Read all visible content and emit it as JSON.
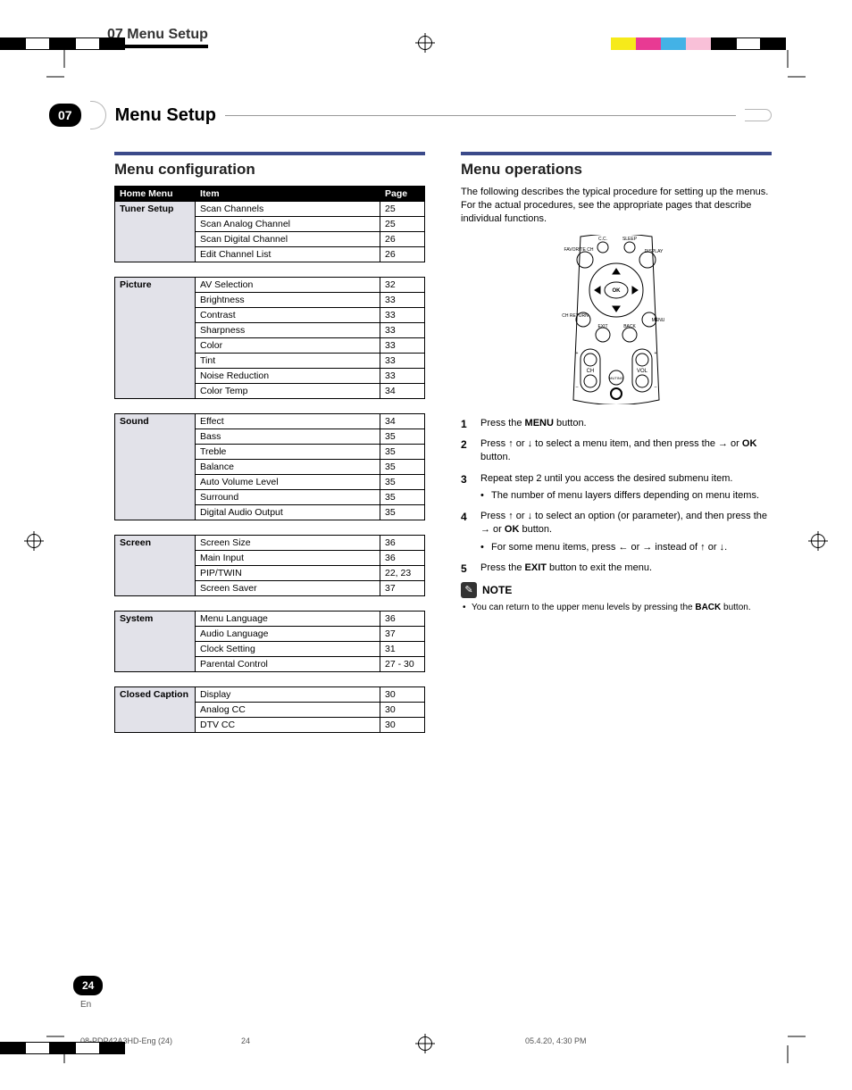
{
  "top_label": "07 Menu Setup",
  "chapter": {
    "num": "07",
    "title": "Menu Setup"
  },
  "left": {
    "heading": "Menu configuration",
    "header_row": [
      "Home Menu",
      "Item",
      "Page"
    ],
    "groups": [
      {
        "category": "Tuner Setup",
        "rows": [
          [
            "Scan Channels",
            "25"
          ],
          [
            "Scan Analog Channel",
            "25"
          ],
          [
            "Scan Digital Channel",
            "26"
          ],
          [
            "Edit Channel List",
            "26"
          ]
        ]
      },
      {
        "category": "Picture",
        "rows": [
          [
            "AV Selection",
            "32"
          ],
          [
            "Brightness",
            "33"
          ],
          [
            "Contrast",
            "33"
          ],
          [
            "Sharpness",
            "33"
          ],
          [
            "Color",
            "33"
          ],
          [
            "Tint",
            "33"
          ],
          [
            "Noise Reduction",
            "33"
          ],
          [
            "Color Temp",
            "34"
          ]
        ]
      },
      {
        "category": "Sound",
        "rows": [
          [
            "Effect",
            "34"
          ],
          [
            "Bass",
            "35"
          ],
          [
            "Treble",
            "35"
          ],
          [
            "Balance",
            "35"
          ],
          [
            "Auto Volume Level",
            "35"
          ],
          [
            "Surround",
            "35"
          ],
          [
            "Digital Audio Output",
            "35"
          ]
        ]
      },
      {
        "category": "Screen",
        "rows": [
          [
            "Screen Size",
            "36"
          ],
          [
            "Main Input",
            "36"
          ],
          [
            "PIP/TWIN",
            "22, 23"
          ],
          [
            "Screen Saver",
            "37"
          ]
        ]
      },
      {
        "category": "System",
        "rows": [
          [
            "Menu Language",
            "36"
          ],
          [
            "Audio Language",
            "37"
          ],
          [
            "Clock Setting",
            "31"
          ],
          [
            "Parental Control",
            "27 - 30"
          ]
        ]
      },
      {
        "category": "Closed Caption",
        "rows": [
          [
            "Display",
            "30"
          ],
          [
            "Analog CC",
            "30"
          ],
          [
            "DTV CC",
            "30"
          ]
        ]
      }
    ]
  },
  "right": {
    "heading": "Menu operations",
    "intro": "The following describes the typical procedure for setting up the menus. For the actual procedures, see the appropriate pages that describe individual functions.",
    "remote_labels": {
      "cc": "C.C.",
      "sleep": "SLEEP",
      "fav": "FAVORITE CH",
      "display": "DISPLAY",
      "ok": "OK",
      "ch_return": "CH RETURN",
      "menu": "MENU",
      "exit": "EXIT",
      "back": "BACK",
      "ch": "CH",
      "muting": "MUTING",
      "vol": "VOL",
      "plus": "+",
      "minus": "–"
    },
    "steps": {
      "s1_a": "Press the ",
      "s1_b": "MENU",
      "s1_c": " button.",
      "s2_a": "Press ",
      "s2_b": " or ",
      "s2_c": " to select a menu item, and then press the ",
      "s2_d": " or ",
      "s2_e": "OK",
      "s2_f": " button.",
      "s3_a": "Repeat step 2 until you access the desired submenu item.",
      "s3_b": "The number of menu layers differs depending on menu items.",
      "s4_a": "Press ",
      "s4_b": " or ",
      "s4_c": " to select an option (or parameter), and then press the ",
      "s4_d": " or ",
      "s4_e": "OK",
      "s4_f": " button.",
      "s4_g": "For some menu items, press ",
      "s4_h": " or ",
      "s4_i": " instead of ",
      "s4_j": " or ",
      "s4_k": ".",
      "s5_a": "Press the ",
      "s5_b": "EXIT",
      "s5_c": " button to exit the menu."
    },
    "note_title": "NOTE",
    "note_a": "You can return to the upper menu levels by pressing the ",
    "note_b": "BACK",
    "note_c": " button."
  },
  "page_num": "24",
  "lang": "En",
  "footer_left": "08-PDP42A3HD-Eng (24)",
  "footer_mid": "24",
  "footer_right": "05.4.20, 4:30 PM",
  "colorbar_top_left": [
    "#000",
    "#fff",
    "#000",
    "#fff",
    "#000"
  ],
  "colorbar_top_right": [
    "#f6ea1a",
    "#e83a93",
    "#43b2e6",
    "#f9c0d8",
    "#000",
    "#fff",
    "#000"
  ],
  "colorbar_bottom_left": [
    "#000",
    "#fff",
    "#000",
    "#fff",
    "#000"
  ]
}
